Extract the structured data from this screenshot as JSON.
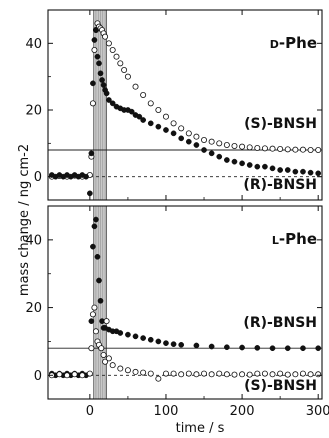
{
  "chart_data": [
    {
      "type": "scatter",
      "title": "D-Phe",
      "xlabel": "time / s",
      "ylabel": "mass change / ng cm-2",
      "xlim": [
        -55,
        305
      ],
      "ylim": [
        -7,
        50
      ],
      "x_ticks": [
        "0",
        "100",
        "200",
        "300"
      ],
      "y_ticks": [
        "0",
        "20",
        "40"
      ],
      "grid": false,
      "shaded_interval": [
        5,
        22
      ],
      "reference_lines": [
        {
          "y": 0,
          "style": "dashed"
        },
        {
          "y": 8,
          "style": "solid"
        }
      ],
      "series": [
        {
          "name": "(S)-BNSH",
          "marker": "open-circle",
          "points": [
            [
              -50,
              0
            ],
            [
              -40,
              0.2
            ],
            [
              -30,
              0
            ],
            [
              -20,
              0.3
            ],
            [
              -10,
              0
            ],
            [
              0,
              0.5
            ],
            [
              2,
              6
            ],
            [
              4,
              22
            ],
            [
              6,
              38
            ],
            [
              8,
              44
            ],
            [
              10,
              46
            ],
            [
              12,
              45
            ],
            [
              14,
              44.5
            ],
            [
              16,
              44
            ],
            [
              18,
              43
            ],
            [
              20,
              42
            ],
            [
              25,
              40
            ],
            [
              30,
              38
            ],
            [
              35,
              36
            ],
            [
              40,
              34
            ],
            [
              45,
              32
            ],
            [
              50,
              30
            ],
            [
              60,
              27
            ],
            [
              70,
              24.5
            ],
            [
              80,
              22
            ],
            [
              90,
              20
            ],
            [
              100,
              18
            ],
            [
              110,
              16
            ],
            [
              120,
              14.5
            ],
            [
              130,
              13
            ],
            [
              140,
              12
            ],
            [
              150,
              11
            ],
            [
              160,
              10.5
            ],
            [
              170,
              10
            ],
            [
              180,
              9.5
            ],
            [
              190,
              9.2
            ],
            [
              200,
              9
            ],
            [
              210,
              8.8
            ],
            [
              220,
              8.6
            ],
            [
              230,
              8.5
            ],
            [
              240,
              8.4
            ],
            [
              250,
              8.3
            ],
            [
              260,
              8.2
            ],
            [
              270,
              8.1
            ],
            [
              280,
              8.1
            ],
            [
              290,
              8
            ],
            [
              300,
              8
            ]
          ]
        },
        {
          "name": "(R)-BNSH",
          "marker": "filled-circle",
          "points": [
            [
              -50,
              0.5
            ],
            [
              -45,
              0
            ],
            [
              -40,
              0.5
            ],
            [
              -35,
              0
            ],
            [
              -30,
              0.5
            ],
            [
              -25,
              0
            ],
            [
              -20,
              0.5
            ],
            [
              -15,
              0
            ],
            [
              -10,
              0.5
            ],
            [
              -5,
              0
            ],
            [
              0,
              -5
            ],
            [
              2,
              7
            ],
            [
              4,
              28
            ],
            [
              6,
              41
            ],
            [
              8,
              44
            ],
            [
              10,
              36
            ],
            [
              12,
              34
            ],
            [
              14,
              31
            ],
            [
              16,
              29
            ],
            [
              18,
              27.5
            ],
            [
              20,
              26
            ],
            [
              22,
              25
            ],
            [
              25,
              23
            ],
            [
              30,
              22
            ],
            [
              35,
              21
            ],
            [
              40,
              20.5
            ],
            [
              45,
              20
            ],
            [
              50,
              20
            ],
            [
              55,
              19.5
            ],
            [
              60,
              18.5
            ],
            [
              65,
              18
            ],
            [
              70,
              17
            ],
            [
              80,
              16
            ],
            [
              90,
              15
            ],
            [
              100,
              14
            ],
            [
              110,
              13
            ],
            [
              120,
              11.5
            ],
            [
              130,
              10.5
            ],
            [
              140,
              9.5
            ],
            [
              150,
              8
            ],
            [
              160,
              7
            ],
            [
              170,
              6
            ],
            [
              180,
              5
            ],
            [
              190,
              4.5
            ],
            [
              200,
              4
            ],
            [
              210,
              3.5
            ],
            [
              220,
              3
            ],
            [
              230,
              3
            ],
            [
              240,
              2.5
            ],
            [
              250,
              2
            ],
            [
              260,
              2
            ],
            [
              270,
              1.5
            ],
            [
              280,
              1.5
            ],
            [
              290,
              1.2
            ],
            [
              300,
              1
            ]
          ]
        }
      ]
    },
    {
      "type": "scatter",
      "title": "L-Phe",
      "xlabel": "time / s",
      "ylabel": "mass change / ng cm-2",
      "xlim": [
        -55,
        305
      ],
      "ylim": [
        -7,
        50
      ],
      "x_ticks": [
        "0",
        "100",
        "200",
        "300"
      ],
      "y_ticks": [
        "0",
        "20",
        "40"
      ],
      "grid": false,
      "shaded_interval": [
        5,
        22
      ],
      "reference_lines": [
        {
          "y": 0,
          "style": "dashed"
        },
        {
          "y": 8,
          "style": "solid"
        }
      ],
      "series": [
        {
          "name": "(R)-BNSH",
          "marker": "filled-circle",
          "points": [
            [
              -50,
              0.5
            ],
            [
              -45,
              0
            ],
            [
              -40,
              0.5
            ],
            [
              -35,
              0
            ],
            [
              -30,
              0.5
            ],
            [
              -25,
              0
            ],
            [
              -20,
              0.5
            ],
            [
              -15,
              0
            ],
            [
              -10,
              0.5
            ],
            [
              -5,
              0
            ],
            [
              2,
              16
            ],
            [
              4,
              38
            ],
            [
              6,
              44
            ],
            [
              8,
              46
            ],
            [
              10,
              35
            ],
            [
              12,
              28
            ],
            [
              14,
              22
            ],
            [
              16,
              16
            ],
            [
              18,
              14
            ],
            [
              20,
              14
            ],
            [
              25,
              13.5
            ],
            [
              30,
              13
            ],
            [
              35,
              13
            ],
            [
              40,
              12.5
            ],
            [
              50,
              12
            ],
            [
              60,
              11.5
            ],
            [
              70,
              11
            ],
            [
              80,
              10.5
            ],
            [
              90,
              10
            ],
            [
              100,
              9.5
            ],
            [
              110,
              9.2
            ],
            [
              120,
              9
            ],
            [
              140,
              8.8
            ],
            [
              160,
              8.5
            ],
            [
              180,
              8.3
            ],
            [
              200,
              8.2
            ],
            [
              220,
              8.1
            ],
            [
              240,
              8
            ],
            [
              260,
              8
            ],
            [
              280,
              8
            ],
            [
              300,
              8
            ]
          ]
        },
        {
          "name": "(S)-BNSH",
          "marker": "open-circle",
          "points": [
            [
              -50,
              0
            ],
            [
              -40,
              0.3
            ],
            [
              -30,
              0
            ],
            [
              -20,
              0.3
            ],
            [
              -10,
              0
            ],
            [
              0,
              0.5
            ],
            [
              2,
              8
            ],
            [
              4,
              18
            ],
            [
              6,
              20
            ],
            [
              8,
              13
            ],
            [
              10,
              10
            ],
            [
              12,
              9
            ],
            [
              15,
              8
            ],
            [
              18,
              6
            ],
            [
              20,
              4
            ],
            [
              22,
              16
            ],
            [
              25,
              5
            ],
            [
              30,
              3
            ],
            [
              40,
              2
            ],
            [
              50,
              1.5
            ],
            [
              60,
              1
            ],
            [
              70,
              0.8
            ],
            [
              80,
              0.5
            ],
            [
              90,
              -1
            ],
            [
              100,
              0.5
            ],
            [
              110,
              0.5
            ],
            [
              120,
              0.3
            ],
            [
              130,
              0.5
            ],
            [
              140,
              0.3
            ],
            [
              150,
              0.5
            ],
            [
              160,
              0.3
            ],
            [
              170,
              0.5
            ],
            [
              180,
              0.3
            ],
            [
              190,
              0.2
            ],
            [
              200,
              0.3
            ],
            [
              210,
              0.2
            ],
            [
              220,
              0.5
            ],
            [
              230,
              0.5
            ],
            [
              240,
              0.3
            ],
            [
              250,
              0.5
            ],
            [
              260,
              0.2
            ],
            [
              270,
              0.3
            ],
            [
              280,
              0.5
            ],
            [
              290,
              0.3
            ],
            [
              300,
              0.3
            ]
          ]
        }
      ]
    }
  ]
}
